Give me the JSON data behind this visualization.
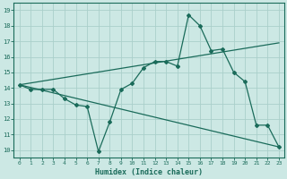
{
  "xlabel": "Humidex (Indice chaleur)",
  "background_color": "#cce8e4",
  "grid_color": "#aacfca",
  "line_color": "#1a6b5a",
  "xlim": [
    -0.5,
    23.5
  ],
  "ylim": [
    9.5,
    19.5
  ],
  "xticks": [
    0,
    1,
    2,
    3,
    4,
    5,
    6,
    7,
    8,
    9,
    10,
    11,
    12,
    13,
    14,
    15,
    16,
    17,
    18,
    19,
    20,
    21,
    22,
    23
  ],
  "yticks": [
    10,
    11,
    12,
    13,
    14,
    15,
    16,
    17,
    18,
    19
  ],
  "series1_x": [
    0,
    1,
    2,
    3,
    4,
    5,
    6,
    7,
    8,
    9,
    10,
    11,
    12,
    13,
    14,
    15,
    16,
    17,
    18,
    19,
    20,
    21,
    22,
    23
  ],
  "series1_y": [
    14.2,
    13.9,
    13.9,
    13.9,
    13.3,
    12.9,
    12.8,
    9.9,
    11.8,
    13.9,
    14.3,
    15.3,
    15.7,
    15.7,
    15.4,
    18.7,
    18.0,
    16.4,
    16.5,
    15.0,
    14.4,
    11.6,
    11.6,
    10.2
  ],
  "series2_x": [
    0,
    23
  ],
  "series2_y": [
    14.2,
    10.2
  ],
  "series3_x": [
    0,
    23
  ],
  "series3_y": [
    14.2,
    16.9
  ]
}
